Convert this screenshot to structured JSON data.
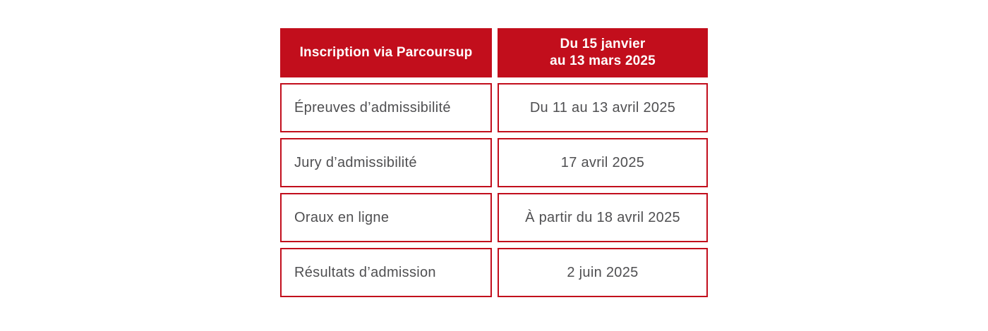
{
  "colors": {
    "accent_red": "#c20e1c",
    "body_text": "#4f4f51",
    "header_text": "#ffffff",
    "background": "#ffffff"
  },
  "table": {
    "header": {
      "step": "Inscription via Parcoursup",
      "date_line1": "Du 15 janvier",
      "date_line2": "au 13 mars 2025"
    },
    "rows": [
      {
        "label": "Épreuves d’admissibilité",
        "date": "Du 11 au 13 avril 2025"
      },
      {
        "label": "Jury d’admissibilité",
        "date": "17 avril 2025"
      },
      {
        "label": "Oraux en ligne",
        "date": "À partir du 18 avril 2025"
      },
      {
        "label": "Résultats d’admission",
        "date": "2 juin 2025"
      }
    ]
  }
}
